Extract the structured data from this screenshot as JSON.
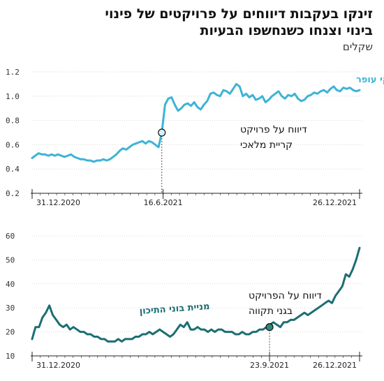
{
  "title_line1": "זינקו בעקבות דיווחים על פרויקטים של פינוי",
  "title_line2": "בינוי וצנחו כשנחשפו הבעיות",
  "unit": "שקלים",
  "colors": {
    "top_series": "#3db3d6",
    "bottom_series": "#1c6e72",
    "axis": "#222222",
    "grid": "#d9d9d9"
  },
  "chart_data": [
    {
      "type": "line",
      "series": [
        {
          "name": "מניית לוינסקי עופר",
          "color": "#3db3d6",
          "values": [
            0.49,
            0.51,
            0.53,
            0.52,
            0.52,
            0.51,
            0.52,
            0.51,
            0.52,
            0.51,
            0.5,
            0.51,
            0.52,
            0.5,
            0.49,
            0.48,
            0.48,
            0.47,
            0.47,
            0.46,
            0.47,
            0.47,
            0.48,
            0.47,
            0.48,
            0.5,
            0.52,
            0.55,
            0.57,
            0.56,
            0.58,
            0.6,
            0.61,
            0.62,
            0.63,
            0.61,
            0.63,
            0.62,
            0.6,
            0.58,
            0.7,
            0.93,
            0.98,
            0.99,
            0.93,
            0.88,
            0.9,
            0.93,
            0.94,
            0.92,
            0.95,
            0.91,
            0.89,
            0.93,
            0.96,
            1.02,
            1.03,
            1.01,
            1.0,
            1.05,
            1.04,
            1.02,
            1.06,
            1.1,
            1.08,
            1.0,
            1.02,
            0.99,
            1.01,
            0.97,
            0.98,
            1.0,
            0.95,
            0.97,
            1.0,
            1.02,
            1.04,
            1.0,
            0.98,
            1.01,
            1.0,
            1.02,
            0.98,
            0.96,
            0.97,
            1.0,
            1.01,
            1.03,
            1.02,
            1.04,
            1.05,
            1.03,
            1.06,
            1.08,
            1.05,
            1.04,
            1.07,
            1.06,
            1.07,
            1.05,
            1.04,
            1.05
          ]
        }
      ],
      "x_labels": [
        "31.12.2020",
        "16.6.2021",
        "26.12.2021"
      ],
      "x_label_positions": [
        0,
        40,
        100
      ],
      "yticks": [
        0.2,
        0.4,
        0.6,
        0.8,
        1.0,
        1.2
      ],
      "ylim": [
        0.2,
        1.2
      ],
      "annotation": {
        "line1": "דיווח על פרויקט",
        "line2": "קריית מלאכי",
        "index": 40,
        "value": 0.7
      }
    },
    {
      "type": "line",
      "series": [
        {
          "name": "מניית בוני התיכון",
          "color": "#1c6e72",
          "values": [
            17,
            22,
            22,
            26,
            28,
            31,
            27,
            25,
            23,
            22,
            23,
            21,
            22,
            21,
            20,
            20,
            19,
            19,
            18,
            18,
            17,
            17,
            16,
            16,
            16,
            17,
            16,
            17,
            17,
            17,
            18,
            18,
            19,
            19,
            20,
            19,
            20,
            21,
            20,
            19,
            18,
            19,
            21,
            23,
            22,
            24,
            21,
            21,
            22,
            21,
            21,
            20,
            21,
            20,
            21,
            21,
            20,
            20,
            20,
            19,
            19,
            20,
            19,
            19,
            20,
            20,
            21,
            21,
            22,
            23,
            24,
            23,
            22,
            24,
            24,
            25,
            25,
            26,
            27,
            28,
            27,
            28,
            29,
            30,
            31,
            32,
            33,
            32,
            35,
            37,
            39,
            44,
            43,
            46,
            50,
            55
          ]
        }
      ],
      "x_labels": [
        "31.12.2020",
        "23.9.2021",
        "26.12.2021"
      ],
      "x_label_positions": [
        0,
        72.5,
        100
      ],
      "yticks": [
        10,
        20,
        30,
        40,
        50,
        60
      ],
      "ylim": [
        10,
        60
      ],
      "annotation": {
        "line1": "דיווח על הפרויקט",
        "line2": "בגני תקווה",
        "index": 72.5,
        "value": 22
      }
    }
  ]
}
